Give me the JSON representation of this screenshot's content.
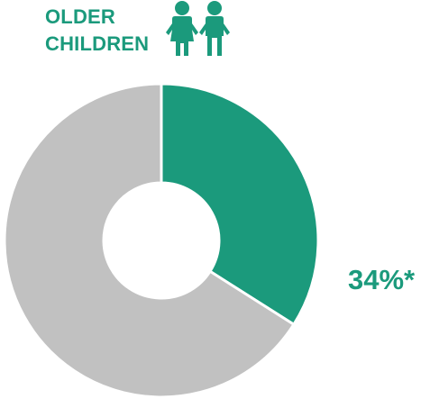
{
  "header": {
    "title_line1": "OLDER",
    "title_line2": "CHILDREN",
    "icon": "two-children-icon"
  },
  "colors": {
    "accent": "#1b9a7c",
    "remainder": "#c1c1c1",
    "divider": "#ffffff"
  },
  "chart_data": {
    "type": "pie",
    "donut": true,
    "slices": [
      {
        "value": 34
      },
      {
        "value": 66
      }
    ],
    "annotations": [
      "34%*"
    ]
  }
}
